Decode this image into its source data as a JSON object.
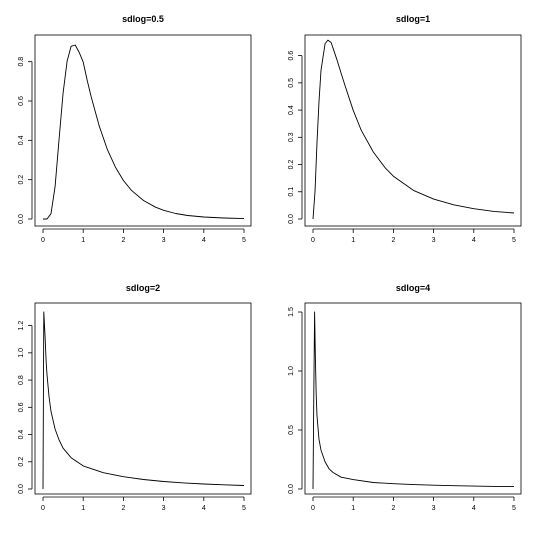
{
  "chart_data": [
    {
      "type": "line",
      "title": "sdlog=0.5",
      "xlabel": "",
      "ylabel": "",
      "xlim": [
        0,
        5
      ],
      "ylim": [
        0,
        0.9
      ],
      "x_ticks": [
        0,
        1,
        2,
        3,
        4,
        5
      ],
      "x_tick_labels": [
        "0",
        "1",
        "2",
        "3",
        "4",
        "5"
      ],
      "y_ticks": [
        0,
        0.2,
        0.4,
        0.6,
        0.8
      ],
      "y_tick_labels": [
        "0.0",
        "0.2",
        "0.4",
        "0.6",
        "0.8"
      ],
      "grid": false,
      "line_color": "#000000",
      "series": [
        {
          "x": [
            0.0,
            0.1,
            0.2,
            0.3,
            0.4,
            0.5,
            0.6,
            0.7,
            0.8,
            0.9,
            1.0,
            1.1,
            1.2,
            1.4,
            1.6,
            1.8,
            2.0,
            2.2,
            2.5,
            2.8,
            3.0,
            3.3,
            3.6,
            4.0,
            4.5,
            5.0
          ],
          "y": [
            0.0,
            0.0,
            0.027,
            0.166,
            0.408,
            0.641,
            0.802,
            0.878,
            0.885,
            0.847,
            0.798,
            0.705,
            0.621,
            0.472,
            0.354,
            0.264,
            0.196,
            0.146,
            0.094,
            0.06,
            0.044,
            0.028,
            0.018,
            0.01,
            0.005,
            0.002
          ]
        }
      ]
    },
    {
      "type": "line",
      "title": "sdlog=1",
      "xlabel": "",
      "ylabel": "",
      "xlim": [
        0,
        5
      ],
      "ylim": [
        0,
        0.65
      ],
      "x_ticks": [
        0,
        1,
        2,
        3,
        4,
        5
      ],
      "x_tick_labels": [
        "0",
        "1",
        "2",
        "3",
        "4",
        "5"
      ],
      "y_ticks": [
        0,
        0.1,
        0.2,
        0.3,
        0.4,
        0.5,
        0.6
      ],
      "y_tick_labels": [
        "0.0",
        "0.1",
        "0.2",
        "0.3",
        "0.4",
        "0.5",
        "0.6"
      ],
      "grid": false,
      "line_color": "#000000",
      "series": [
        {
          "x": [
            0.0,
            0.05,
            0.1,
            0.15,
            0.2,
            0.3,
            0.37,
            0.45,
            0.5,
            0.6,
            0.7,
            0.8,
            1.0,
            1.2,
            1.5,
            1.8,
            2.0,
            2.5,
            3.0,
            3.5,
            4.0,
            4.5,
            5.0
          ],
          "y": [
            0.0,
            0.1,
            0.281,
            0.431,
            0.546,
            0.644,
            0.657,
            0.648,
            0.627,
            0.583,
            0.535,
            0.488,
            0.399,
            0.326,
            0.246,
            0.187,
            0.157,
            0.105,
            0.073,
            0.052,
            0.038,
            0.028,
            0.022
          ]
        }
      ]
    },
    {
      "type": "line",
      "title": "sdlog=2",
      "xlabel": "",
      "ylabel": "",
      "xlim": [
        0,
        5
      ],
      "ylim": [
        0,
        1.3
      ],
      "x_ticks": [
        0,
        1,
        2,
        3,
        4,
        5
      ],
      "x_tick_labels": [
        "0",
        "1",
        "2",
        "3",
        "4",
        "5"
      ],
      "y_ticks": [
        0,
        0.2,
        0.4,
        0.6,
        0.8,
        1.0,
        1.2
      ],
      "y_tick_labels": [
        "0.0",
        "0.2",
        "0.4",
        "0.6",
        "0.8",
        "1.0",
        "1.2"
      ],
      "grid": false,
      "line_color": "#000000",
      "series": [
        {
          "x": [
            0.0,
            0.02,
            0.05,
            0.08,
            0.1,
            0.15,
            0.2,
            0.3,
            0.4,
            0.5,
            0.7,
            1.0,
            1.5,
            2.0,
            2.5,
            3.0,
            3.5,
            4.0,
            4.5,
            5.0
          ],
          "y": [
            0.0,
            1.3,
            1.13,
            0.93,
            0.84,
            0.68,
            0.57,
            0.44,
            0.36,
            0.3,
            0.23,
            0.17,
            0.12,
            0.09,
            0.07,
            0.055,
            0.045,
            0.037,
            0.031,
            0.026
          ]
        }
      ]
    },
    {
      "type": "line",
      "title": "sdlog=4",
      "xlabel": "",
      "ylabel": "",
      "xlim": [
        0,
        5
      ],
      "ylim": [
        0,
        1.5
      ],
      "x_ticks": [
        0,
        1,
        2,
        3,
        4,
        5
      ],
      "x_tick_labels": [
        "0",
        "1",
        "2",
        "3",
        "4",
        "5"
      ],
      "y_ticks": [
        0,
        0.5,
        1.0,
        1.5
      ],
      "y_tick_labels": [
        "0.0",
        "0.5",
        "1.0",
        "1.5"
      ],
      "grid": false,
      "line_color": "#000000",
      "series": [
        {
          "x": [
            0.0,
            0.02,
            0.04,
            0.06,
            0.08,
            0.1,
            0.15,
            0.2,
            0.3,
            0.4,
            0.5,
            0.7,
            1.0,
            1.5,
            2.0,
            2.5,
            3.0,
            3.5,
            4.0,
            4.5,
            5.0
          ],
          "y": [
            0.0,
            0.8,
            1.5,
            1.1,
            0.8,
            0.62,
            0.42,
            0.33,
            0.23,
            0.17,
            0.14,
            0.1,
            0.08,
            0.055,
            0.045,
            0.037,
            0.032,
            0.028,
            0.025,
            0.022,
            0.02
          ]
        }
      ]
    }
  ]
}
